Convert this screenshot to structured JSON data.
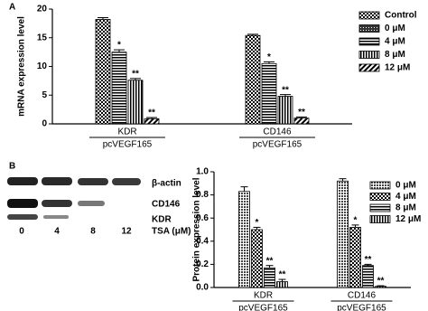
{
  "chart_data": [
    {
      "type": "bar",
      "panel": "A",
      "ylabel": "mRNA expression level",
      "categories": [
        "KDR",
        "CD146"
      ],
      "group_label": "pcVEGF165",
      "ylim": [
        0,
        20
      ],
      "yticks": [
        0,
        5,
        10,
        15,
        20
      ],
      "series": [
        {
          "name": "Control",
          "pattern": "checker",
          "values": [
            18.2,
            15.4
          ],
          "errors": [
            0.3,
            0.2
          ],
          "significance": [
            null,
            null
          ]
        },
        {
          "name": "0 μM",
          "pattern": "dense",
          "values": [
            null,
            null
          ],
          "errors": [
            null,
            null
          ],
          "significance": [
            null,
            null
          ]
        },
        {
          "name": "4 μM",
          "pattern": "horizontal",
          "values": [
            12.5,
            10.5
          ],
          "errors": [
            0.4,
            0.3
          ],
          "significance": [
            "*",
            "*"
          ]
        },
        {
          "name": "8 μM",
          "pattern": "vertical",
          "values": [
            7.6,
            4.8
          ],
          "errors": [
            0.3,
            0.3
          ],
          "significance": [
            "**",
            "**"
          ]
        },
        {
          "name": "12 μM",
          "pattern": "diagonal",
          "values": [
            0.9,
            1.0
          ],
          "errors": [
            0.2,
            0.2
          ],
          "significance": [
            "**",
            "**"
          ]
        }
      ]
    },
    {
      "type": "bar",
      "panel": "B",
      "ylabel": "Protein expression level",
      "categories": [
        "KDR",
        "CD146"
      ],
      "group_label": "pcVEGF165",
      "ylim": [
        0,
        1.0
      ],
      "yticks": [
        {
          "value": 0,
          "label": "0.0"
        },
        0.2,
        0.4,
        0.6,
        0.8,
        {
          "value": 1.0,
          "label": "1.0"
        }
      ],
      "series": [
        {
          "name": "0 μM",
          "pattern": "dots",
          "values": [
            0.83,
            0.92
          ],
          "errors": [
            0.04,
            0.02
          ],
          "significance": [
            null,
            null
          ]
        },
        {
          "name": "4 μM",
          "pattern": "checker",
          "values": [
            0.5,
            0.52
          ],
          "errors": [
            0.02,
            0.02
          ],
          "significance": [
            "*",
            "*"
          ]
        },
        {
          "name": "8 μM",
          "pattern": "horizontal",
          "values": [
            0.17,
            0.19
          ],
          "errors": [
            0.02,
            0.01
          ],
          "significance": [
            "**",
            "**"
          ]
        },
        {
          "name": "12 μM",
          "pattern": "vertical",
          "values": [
            0.05,
            0.01
          ],
          "errors": [
            0.02,
            0.005
          ],
          "significance": [
            "**",
            "**"
          ]
        }
      ]
    }
  ],
  "blot": {
    "labels": [
      "β-actin",
      "CD146",
      "KDR"
    ],
    "lane_title": "TSA (μM)",
    "lanes": [
      0,
      4,
      8,
      12
    ]
  }
}
